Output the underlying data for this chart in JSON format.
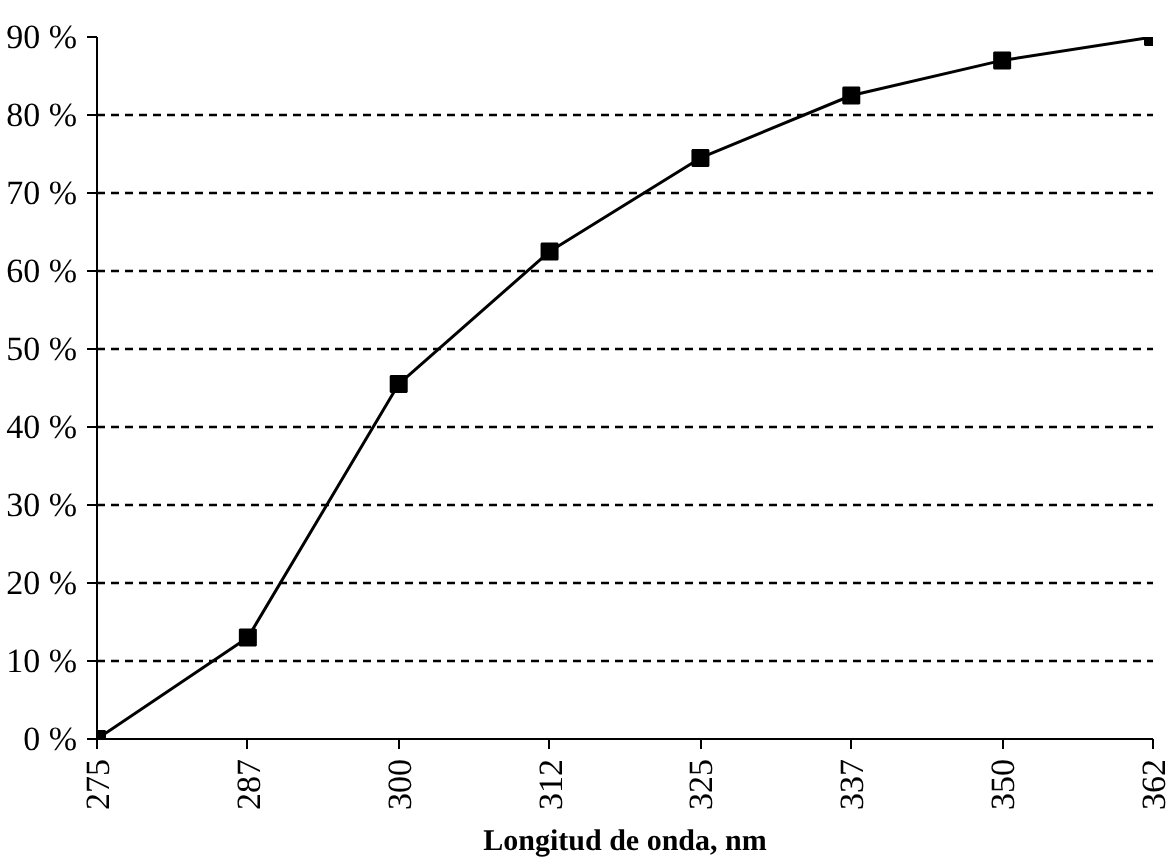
{
  "chart_data": {
    "type": "line",
    "xlabel": "Longitud de onda, nm",
    "categories": [
      "275",
      "287",
      "300",
      "312",
      "325",
      "337",
      "350",
      "362"
    ],
    "series": [
      {
        "color": "#000000",
        "values": [
          0,
          13,
          45.5,
          62.5,
          74.5,
          82.5,
          87,
          90
        ]
      }
    ],
    "ylim": [
      0,
      90
    ],
    "yticks": [
      {
        "value": 0,
        "label": "0 %"
      },
      {
        "value": 10,
        "label": "10 %"
      },
      {
        "value": 20,
        "label": "20 %"
      },
      {
        "value": 30,
        "label": "30 %"
      },
      {
        "value": 40,
        "label": "40 %"
      },
      {
        "value": 50,
        "label": "50 %"
      },
      {
        "value": 60,
        "label": "60 %"
      },
      {
        "value": 70,
        "label": "70 %"
      },
      {
        "value": 80,
        "label": "80 %"
      },
      {
        "value": 90,
        "label": "90 %"
      }
    ],
    "grid": "y",
    "marker": "square",
    "line_style": "solid"
  }
}
